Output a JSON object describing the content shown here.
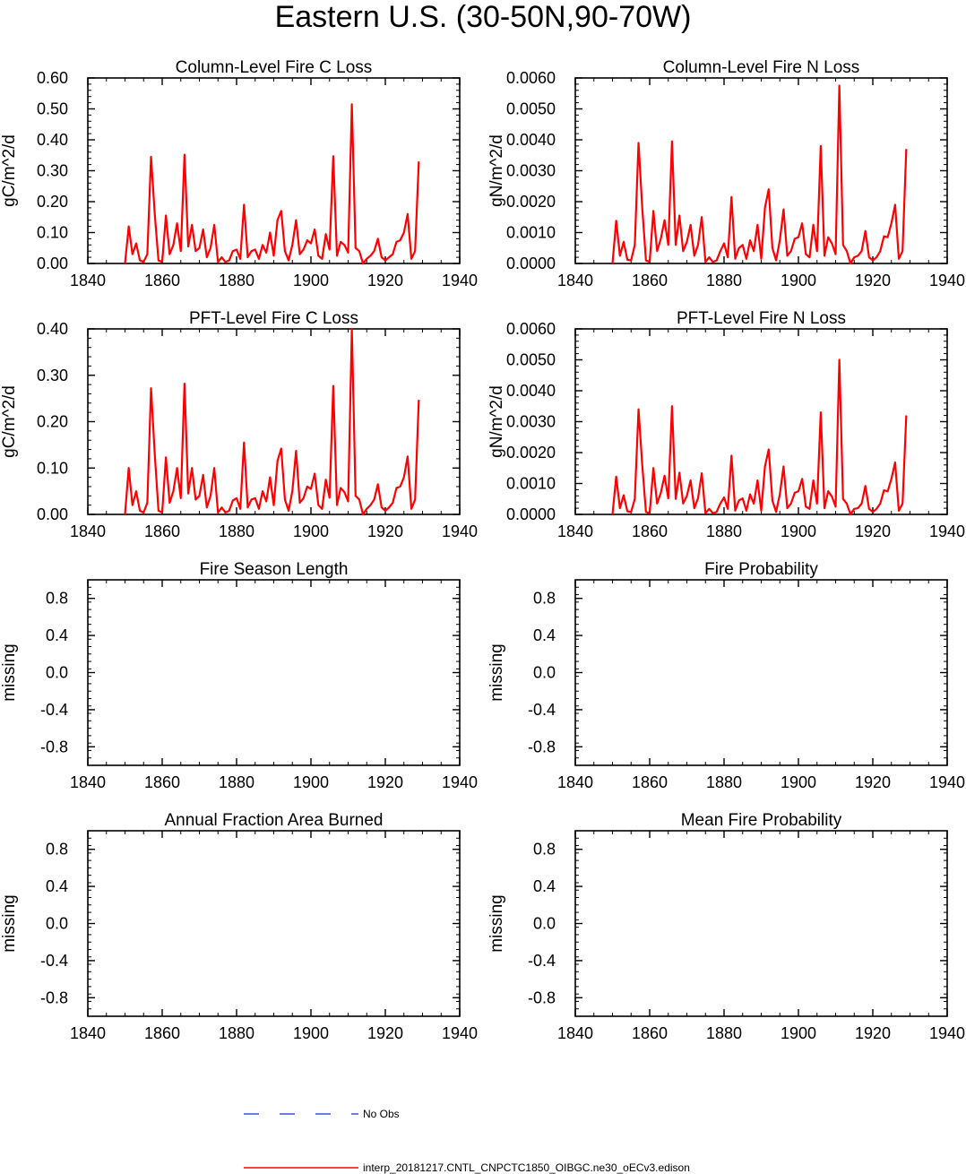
{
  "figure": {
    "title": "Eastern U.S. (30-50N,90-70W)",
    "legend": {
      "entries": [
        {
          "label": "No Obs",
          "color": "#3f51d6",
          "style": "dashed"
        },
        {
          "label": "interp_20181217.CNTL_CNPCTC1850_OIBGC.ne30_oECv3.edison",
          "color": "#ff0000",
          "style": "solid"
        }
      ]
    }
  },
  "chart_data": [
    {
      "type": "line",
      "title": "Column-Level Fire C Loss",
      "xlabel": "",
      "ylabel": "gC/m^2/d",
      "xlim": [
        1840,
        1940
      ],
      "ylim": [
        0,
        0.6
      ],
      "xticks": [
        1840,
        1860,
        1880,
        1900,
        1920,
        1940
      ],
      "xtick_labels": [
        "1840",
        "1860",
        "1880",
        "1900",
        "1920",
        "1940"
      ],
      "yticks": [
        0,
        0.1,
        0.2,
        0.3,
        0.4,
        0.5,
        0.6
      ],
      "ytick_labels": [
        "0.00",
        "0.10",
        "0.20",
        "0.30",
        "0.40",
        "0.50",
        "0.60"
      ],
      "grid": false,
      "series": [
        {
          "name": "interp_20181217.CNTL_CNPCTC1850_OIBGC.ne30_oECv3.edison",
          "color": "#ff0000",
          "x": [
            1850,
            1851,
            1852,
            1853,
            1854,
            1855,
            1856,
            1857,
            1858,
            1859,
            1860,
            1861,
            1862,
            1863,
            1864,
            1865,
            1866,
            1867,
            1868,
            1869,
            1870,
            1871,
            1872,
            1873,
            1874,
            1875,
            1876,
            1877,
            1878,
            1879,
            1880,
            1881,
            1882,
            1883,
            1884,
            1885,
            1886,
            1887,
            1888,
            1889,
            1890,
            1891,
            1892,
            1893,
            1894,
            1895,
            1896,
            1897,
            1898,
            1899,
            1900,
            1901,
            1902,
            1903,
            1904,
            1905,
            1906,
            1907,
            1908,
            1909,
            1910,
            1911,
            1912,
            1913,
            1914,
            1915,
            1916,
            1917,
            1918,
            1919,
            1920,
            1921,
            1922,
            1923,
            1924,
            1925,
            1926,
            1927,
            1928,
            1929
          ],
          "values": [
            0.0,
            0.12,
            0.03,
            0.065,
            0.01,
            0.005,
            0.03,
            0.345,
            0.16,
            0.01,
            0.005,
            0.155,
            0.03,
            0.06,
            0.13,
            0.04,
            0.352,
            0.055,
            0.125,
            0.04,
            0.05,
            0.11,
            0.02,
            0.05,
            0.125,
            0.005,
            0.02,
            0.005,
            0.01,
            0.04,
            0.045,
            0.015,
            0.19,
            0.02,
            0.04,
            0.045,
            0.015,
            0.06,
            0.035,
            0.1,
            0.025,
            0.14,
            0.17,
            0.04,
            0.01,
            0.06,
            0.14,
            0.03,
            0.045,
            0.075,
            0.065,
            0.11,
            0.025,
            0.015,
            0.095,
            0.045,
            0.347,
            0.025,
            0.07,
            0.06,
            0.035,
            0.515,
            0.05,
            0.04,
            0.0,
            0.015,
            0.025,
            0.04,
            0.08,
            0.02,
            0.01,
            0.02,
            0.03,
            0.07,
            0.075,
            0.1,
            0.16,
            0.015,
            0.04,
            0.33
          ]
        }
      ]
    },
    {
      "type": "line",
      "title": "Column-Level Fire N Loss",
      "xlabel": "",
      "ylabel": "gN/m^2/d",
      "xlim": [
        1840,
        1940
      ],
      "ylim": [
        0,
        0.006
      ],
      "xticks": [
        1840,
        1860,
        1880,
        1900,
        1920,
        1940
      ],
      "xtick_labels": [
        "1840",
        "1860",
        "1880",
        "1900",
        "1920",
        "1940"
      ],
      "yticks": [
        0,
        0.001,
        0.002,
        0.003,
        0.004,
        0.005,
        0.006
      ],
      "ytick_labels": [
        "0.0000",
        "0.0010",
        "0.0020",
        "0.0030",
        "0.0040",
        "0.0050",
        "0.0060"
      ],
      "grid": false,
      "series": [
        {
          "name": "interp_20181217.CNTL_CNPCTC1850_OIBGC.ne30_oECv3.edison",
          "color": "#ff0000",
          "x": [
            1850,
            1851,
            1852,
            1853,
            1854,
            1855,
            1856,
            1857,
            1858,
            1859,
            1860,
            1861,
            1862,
            1863,
            1864,
            1865,
            1866,
            1867,
            1868,
            1869,
            1870,
            1871,
            1872,
            1873,
            1874,
            1875,
            1876,
            1877,
            1878,
            1879,
            1880,
            1881,
            1882,
            1883,
            1884,
            1885,
            1886,
            1887,
            1888,
            1889,
            1890,
            1891,
            1892,
            1893,
            1894,
            1895,
            1896,
            1897,
            1898,
            1899,
            1900,
            1901,
            1902,
            1903,
            1904,
            1905,
            1906,
            1907,
            1908,
            1909,
            1910,
            1911,
            1912,
            1913,
            1914,
            1915,
            1916,
            1917,
            1918,
            1919,
            1920,
            1921,
            1922,
            1923,
            1924,
            1925,
            1926,
            1927,
            1928,
            1929
          ],
          "values": [
            0.0,
            0.00138,
            0.00025,
            0.0007,
            0.00012,
            0.0001,
            0.0006,
            0.0039,
            0.0018,
            0.0001,
            5e-05,
            0.0017,
            0.0004,
            0.0008,
            0.0014,
            0.0006,
            0.00395,
            0.0006,
            0.00155,
            0.0004,
            0.0007,
            0.00125,
            0.00025,
            0.0006,
            0.0015,
            5e-05,
            0.0002,
            5e-05,
            0.0001,
            0.0004,
            0.00065,
            0.0002,
            0.00215,
            0.00015,
            0.0005,
            0.0006,
            0.00015,
            0.00075,
            0.0004,
            0.00125,
            0.00015,
            0.0018,
            0.0024,
            0.0005,
            0.0001,
            0.00075,
            0.00175,
            0.00025,
            0.0004,
            0.0008,
            0.00085,
            0.0013,
            0.0003,
            0.0002,
            0.00125,
            0.0004,
            0.0038,
            0.00025,
            0.00085,
            0.00065,
            0.0003,
            0.00575,
            0.0006,
            0.0004,
            0.0,
            0.0002,
            0.00025,
            0.0004,
            0.00105,
            0.0002,
            0.0001,
            0.0002,
            0.0004,
            0.00088,
            0.00085,
            0.0013,
            0.0019,
            0.00015,
            0.0004,
            0.0037
          ]
        }
      ]
    },
    {
      "type": "line",
      "title": "PFT-Level Fire C Loss",
      "xlabel": "",
      "ylabel": "gC/m^2/d",
      "xlim": [
        1840,
        1940
      ],
      "ylim": [
        0,
        0.4
      ],
      "xticks": [
        1840,
        1860,
        1880,
        1900,
        1920,
        1940
      ],
      "xtick_labels": [
        "1840",
        "1860",
        "1880",
        "1900",
        "1920",
        "1940"
      ],
      "yticks": [
        0,
        0.1,
        0.2,
        0.3,
        0.4
      ],
      "ytick_labels": [
        "0.00",
        "0.10",
        "0.20",
        "0.30",
        "0.40"
      ],
      "grid": false,
      "series": [
        {
          "name": "interp_20181217.CNTL_CNPCTC1850_OIBGC.ne30_oECv3.edison",
          "color": "#ff0000",
          "x": [
            1850,
            1851,
            1852,
            1853,
            1854,
            1855,
            1856,
            1857,
            1858,
            1859,
            1860,
            1861,
            1862,
            1863,
            1864,
            1865,
            1866,
            1867,
            1868,
            1869,
            1870,
            1871,
            1872,
            1873,
            1874,
            1875,
            1876,
            1877,
            1878,
            1879,
            1880,
            1881,
            1882,
            1883,
            1884,
            1885,
            1886,
            1887,
            1888,
            1889,
            1890,
            1891,
            1892,
            1893,
            1894,
            1895,
            1896,
            1897,
            1898,
            1899,
            1900,
            1901,
            1902,
            1903,
            1904,
            1905,
            1906,
            1907,
            1908,
            1909,
            1910,
            1911,
            1912,
            1913,
            1914,
            1915,
            1916,
            1917,
            1918,
            1919,
            1920,
            1921,
            1922,
            1923,
            1924,
            1925,
            1926,
            1927,
            1928,
            1929
          ],
          "values": [
            0.0,
            0.1,
            0.02,
            0.05,
            0.008,
            0.004,
            0.025,
            0.272,
            0.13,
            0.008,
            0.004,
            0.123,
            0.025,
            0.05,
            0.1,
            0.035,
            0.282,
            0.045,
            0.1,
            0.032,
            0.04,
            0.085,
            0.015,
            0.04,
            0.1,
            0.004,
            0.015,
            0.004,
            0.008,
            0.03,
            0.035,
            0.012,
            0.155,
            0.015,
            0.032,
            0.035,
            0.012,
            0.05,
            0.028,
            0.08,
            0.02,
            0.115,
            0.142,
            0.032,
            0.008,
            0.05,
            0.137,
            0.025,
            0.035,
            0.06,
            0.055,
            0.088,
            0.02,
            0.012,
            0.075,
            0.036,
            0.277,
            0.02,
            0.057,
            0.048,
            0.028,
            0.4,
            0.04,
            0.032,
            0.0,
            0.012,
            0.02,
            0.032,
            0.065,
            0.015,
            0.008,
            0.015,
            0.025,
            0.057,
            0.06,
            0.08,
            0.125,
            0.012,
            0.032,
            0.247
          ]
        }
      ]
    },
    {
      "type": "line",
      "title": "PFT-Level Fire N Loss",
      "xlabel": "",
      "ylabel": "gN/m^2/d",
      "xlim": [
        1840,
        1940
      ],
      "ylim": [
        0,
        0.006
      ],
      "xticks": [
        1840,
        1860,
        1880,
        1900,
        1920,
        1940
      ],
      "xtick_labels": [
        "1840",
        "1860",
        "1880",
        "1900",
        "1920",
        "1940"
      ],
      "yticks": [
        0,
        0.001,
        0.002,
        0.003,
        0.004,
        0.005,
        0.006
      ],
      "ytick_labels": [
        "0.0000",
        "0.0010",
        "0.0020",
        "0.0030",
        "0.0040",
        "0.0050",
        "0.0060"
      ],
      "grid": false,
      "series": [
        {
          "name": "interp_20181217.CNTL_CNPCTC1850_OIBGC.ne30_oECv3.edison",
          "color": "#ff0000",
          "x": [
            1850,
            1851,
            1852,
            1853,
            1854,
            1855,
            1856,
            1857,
            1858,
            1859,
            1860,
            1861,
            1862,
            1863,
            1864,
            1865,
            1866,
            1867,
            1868,
            1869,
            1870,
            1871,
            1872,
            1873,
            1874,
            1875,
            1876,
            1877,
            1878,
            1879,
            1880,
            1881,
            1882,
            1883,
            1884,
            1885,
            1886,
            1887,
            1888,
            1889,
            1890,
            1891,
            1892,
            1893,
            1894,
            1895,
            1896,
            1897,
            1898,
            1899,
            1900,
            1901,
            1902,
            1903,
            1904,
            1905,
            1906,
            1907,
            1908,
            1909,
            1910,
            1911,
            1912,
            1913,
            1914,
            1915,
            1916,
            1917,
            1918,
            1919,
            1920,
            1921,
            1922,
            1923,
            1924,
            1925,
            1926,
            1927,
            1928,
            1929
          ],
          "values": [
            0.0,
            0.00122,
            0.0002,
            0.00062,
            0.0001,
            8e-05,
            0.0005,
            0.0034,
            0.0016,
            8e-05,
            4e-05,
            0.0015,
            0.00035,
            0.0007,
            0.00125,
            0.00052,
            0.0035,
            0.0005,
            0.00135,
            0.00035,
            0.0006,
            0.0011,
            0.0002,
            0.00052,
            0.00133,
            4e-05,
            0.00018,
            4e-05,
            8e-05,
            0.00035,
            0.00055,
            0.00018,
            0.0019,
            0.00012,
            0.00045,
            0.00052,
            0.00012,
            0.00065,
            0.00035,
            0.0011,
            0.00012,
            0.00155,
            0.0021,
            0.00045,
            8e-05,
            0.00065,
            0.00155,
            0.0002,
            0.00035,
            0.0007,
            0.00075,
            0.00115,
            0.00025,
            0.00018,
            0.0011,
            0.00035,
            0.0033,
            0.0002,
            0.00075,
            0.00058,
            0.00025,
            0.005,
            0.0005,
            0.00035,
            0.0,
            0.00018,
            0.0002,
            0.00035,
            0.00092,
            0.00018,
            8e-05,
            0.00018,
            0.00035,
            0.00078,
            0.00075,
            0.00115,
            0.00168,
            0.00012,
            0.00035,
            0.0032
          ]
        }
      ]
    },
    {
      "type": "line",
      "title": "Fire Season Length",
      "xlabel": "",
      "ylabel": "missing",
      "xlim": [
        1840,
        1940
      ],
      "ylim": [
        -1,
        1
      ],
      "xticks": [
        1840,
        1860,
        1880,
        1900,
        1920,
        1940
      ],
      "xtick_labels": [
        "1840",
        "1860",
        "1880",
        "1900",
        "1920",
        "1940"
      ],
      "yticks": [
        -0.8,
        -0.4,
        0.0,
        0.4,
        0.8
      ],
      "ytick_labels": [
        "-0.8",
        "-0.4",
        "0.0",
        "0.4",
        "0.8"
      ],
      "grid": false,
      "series": []
    },
    {
      "type": "line",
      "title": "Fire Probability",
      "xlabel": "",
      "ylabel": "missing",
      "xlim": [
        1840,
        1940
      ],
      "ylim": [
        -1,
        1
      ],
      "xticks": [
        1840,
        1860,
        1880,
        1900,
        1920,
        1940
      ],
      "xtick_labels": [
        "1840",
        "1860",
        "1880",
        "1900",
        "1920",
        "1940"
      ],
      "yticks": [
        -0.8,
        -0.4,
        0.0,
        0.4,
        0.8
      ],
      "ytick_labels": [
        "-0.8",
        "-0.4",
        "0.0",
        "0.4",
        "0.8"
      ],
      "grid": false,
      "series": []
    },
    {
      "type": "line",
      "title": "Annual Fraction Area Burned",
      "xlabel": "",
      "ylabel": "missing",
      "xlim": [
        1840,
        1940
      ],
      "ylim": [
        -1,
        1
      ],
      "xticks": [
        1840,
        1860,
        1880,
        1900,
        1920,
        1940
      ],
      "xtick_labels": [
        "1840",
        "1860",
        "1880",
        "1900",
        "1920",
        "1940"
      ],
      "yticks": [
        -0.8,
        -0.4,
        0.0,
        0.4,
        0.8
      ],
      "ytick_labels": [
        "-0.8",
        "-0.4",
        "0.0",
        "0.4",
        "0.8"
      ],
      "grid": false,
      "series": []
    },
    {
      "type": "line",
      "title": "Mean Fire Probability",
      "xlabel": "",
      "ylabel": "missing",
      "xlim": [
        1840,
        1940
      ],
      "ylim": [
        -1,
        1
      ],
      "xticks": [
        1840,
        1860,
        1880,
        1900,
        1920,
        1940
      ],
      "xtick_labels": [
        "1840",
        "1860",
        "1880",
        "1900",
        "1920",
        "1940"
      ],
      "yticks": [
        -0.8,
        -0.4,
        0.0,
        0.4,
        0.8
      ],
      "ytick_labels": [
        "-0.8",
        "-0.4",
        "0.0",
        "0.4",
        "0.8"
      ],
      "grid": false,
      "series": []
    }
  ]
}
